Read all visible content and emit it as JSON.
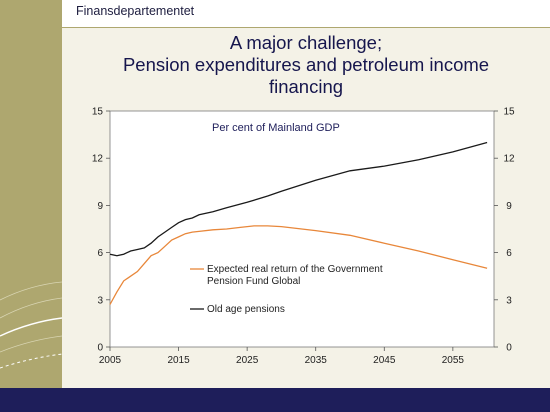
{
  "header": {
    "ministry": "Finansdepartementet"
  },
  "slide": {
    "title_lines": [
      "A major challenge;",
      "Pension expenditures and petroleum income",
      "financing"
    ]
  },
  "colors": {
    "band": "#aea76f",
    "navy": "#1e1e5a",
    "background": "#f4f2e7",
    "pension_line": "#1a1a1a",
    "return_line": "#e8873a"
  },
  "chart_data": {
    "type": "line",
    "title": "",
    "annotation": "Per cent of Mainland  GDP",
    "xlabel": "",
    "ylabel": "",
    "xlim": [
      2005,
      2061
    ],
    "ylim": [
      0,
      15
    ],
    "y_ticks": [
      0,
      3,
      6,
      9,
      12,
      15
    ],
    "x_ticks": [
      2005,
      2015,
      2025,
      2035,
      2045,
      2055
    ],
    "secondary_y_axis": true,
    "grid": false,
    "legend": "inside-lower-left",
    "series": [
      {
        "name": "Expected real return of the Government Pension Fund Global",
        "name_lines": [
          "Expected real return of the Government",
          "Pension Fund Global"
        ],
        "color": "#e8873a",
        "x": [
          2005,
          2006,
          2007,
          2008,
          2009,
          2010,
          2011,
          2012,
          2013,
          2014,
          2015,
          2016,
          2017,
          2018,
          2020,
          2022,
          2024,
          2026,
          2028,
          2030,
          2035,
          2040,
          2045,
          2050,
          2055,
          2060
        ],
        "values": [
          2.7,
          3.5,
          4.2,
          4.5,
          4.8,
          5.3,
          5.8,
          6.0,
          6.4,
          6.8,
          7.0,
          7.2,
          7.3,
          7.35,
          7.45,
          7.5,
          7.6,
          7.7,
          7.7,
          7.65,
          7.4,
          7.1,
          6.6,
          6.1,
          5.55,
          5.0
        ]
      },
      {
        "name": "Old age pensions",
        "name_lines": [
          "Old age pensions"
        ],
        "color": "#1a1a1a",
        "x": [
          2005,
          2006,
          2007,
          2008,
          2009,
          2010,
          2011,
          2012,
          2013,
          2014,
          2015,
          2016,
          2017,
          2018,
          2020,
          2022,
          2025,
          2028,
          2030,
          2035,
          2040,
          2045,
          2050,
          2055,
          2060
        ],
        "values": [
          5.9,
          5.8,
          5.9,
          6.1,
          6.2,
          6.3,
          6.6,
          7.0,
          7.3,
          7.6,
          7.9,
          8.1,
          8.2,
          8.4,
          8.6,
          8.85,
          9.2,
          9.6,
          9.9,
          10.6,
          11.2,
          11.5,
          11.9,
          12.4,
          13.0
        ]
      }
    ]
  }
}
